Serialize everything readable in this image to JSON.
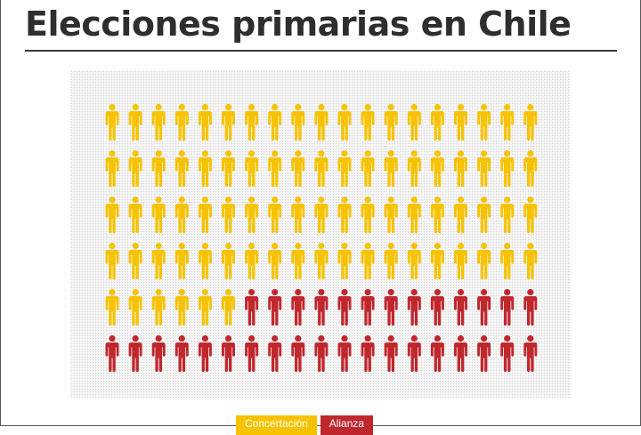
{
  "header": {
    "title": "Elecciones primarias en Chile"
  },
  "chart_data": {
    "type": "pictograph",
    "unit_icon": "person-icon",
    "grid": {
      "columns": 19,
      "rows": 6
    },
    "series": [
      {
        "name": "Concertación",
        "count": 82,
        "color": "#f7c300"
      },
      {
        "name": "Alianza",
        "count": 32,
        "color": "#c0272d"
      }
    ]
  },
  "legend": [
    {
      "label": "Concertación",
      "color": "#f7c300"
    },
    {
      "label": "Alianza",
      "color": "#c0272d"
    }
  ]
}
